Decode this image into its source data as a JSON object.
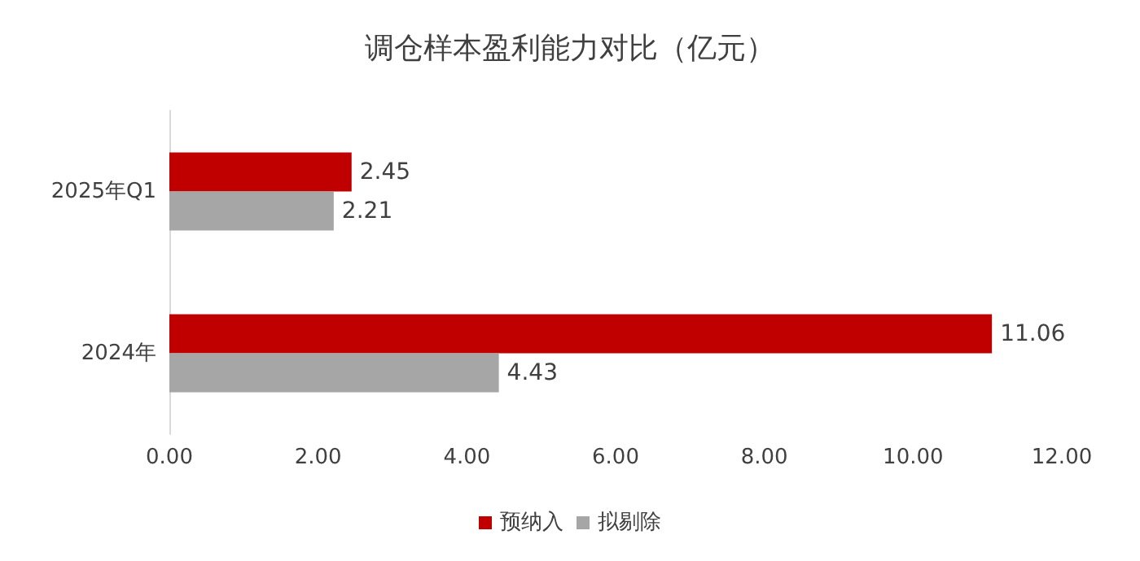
{
  "chart_data": {
    "type": "bar",
    "orientation": "horizontal",
    "title": "调仓样本盈利能力对比（亿元）",
    "categories": [
      "2025年Q1",
      "2024年"
    ],
    "series": [
      {
        "name": "预纳入",
        "color": "#c00000",
        "values": [
          2.45,
          11.06
        ]
      },
      {
        "name": "拟剔除",
        "color": "#a6a6a6",
        "values": [
          2.21,
          4.43
        ]
      }
    ],
    "xlim": [
      0,
      12
    ],
    "xticks": [
      {
        "value": 0,
        "label": "0.00"
      },
      {
        "value": 2,
        "label": "2.00"
      },
      {
        "value": 4,
        "label": "4.00"
      },
      {
        "value": 6,
        "label": "6.00"
      },
      {
        "value": 8,
        "label": "8.00"
      },
      {
        "value": 10,
        "label": "10.00"
      },
      {
        "value": 12,
        "label": "12.00"
      }
    ],
    "data_labels": true,
    "grid": false,
    "legend": "bottom"
  }
}
